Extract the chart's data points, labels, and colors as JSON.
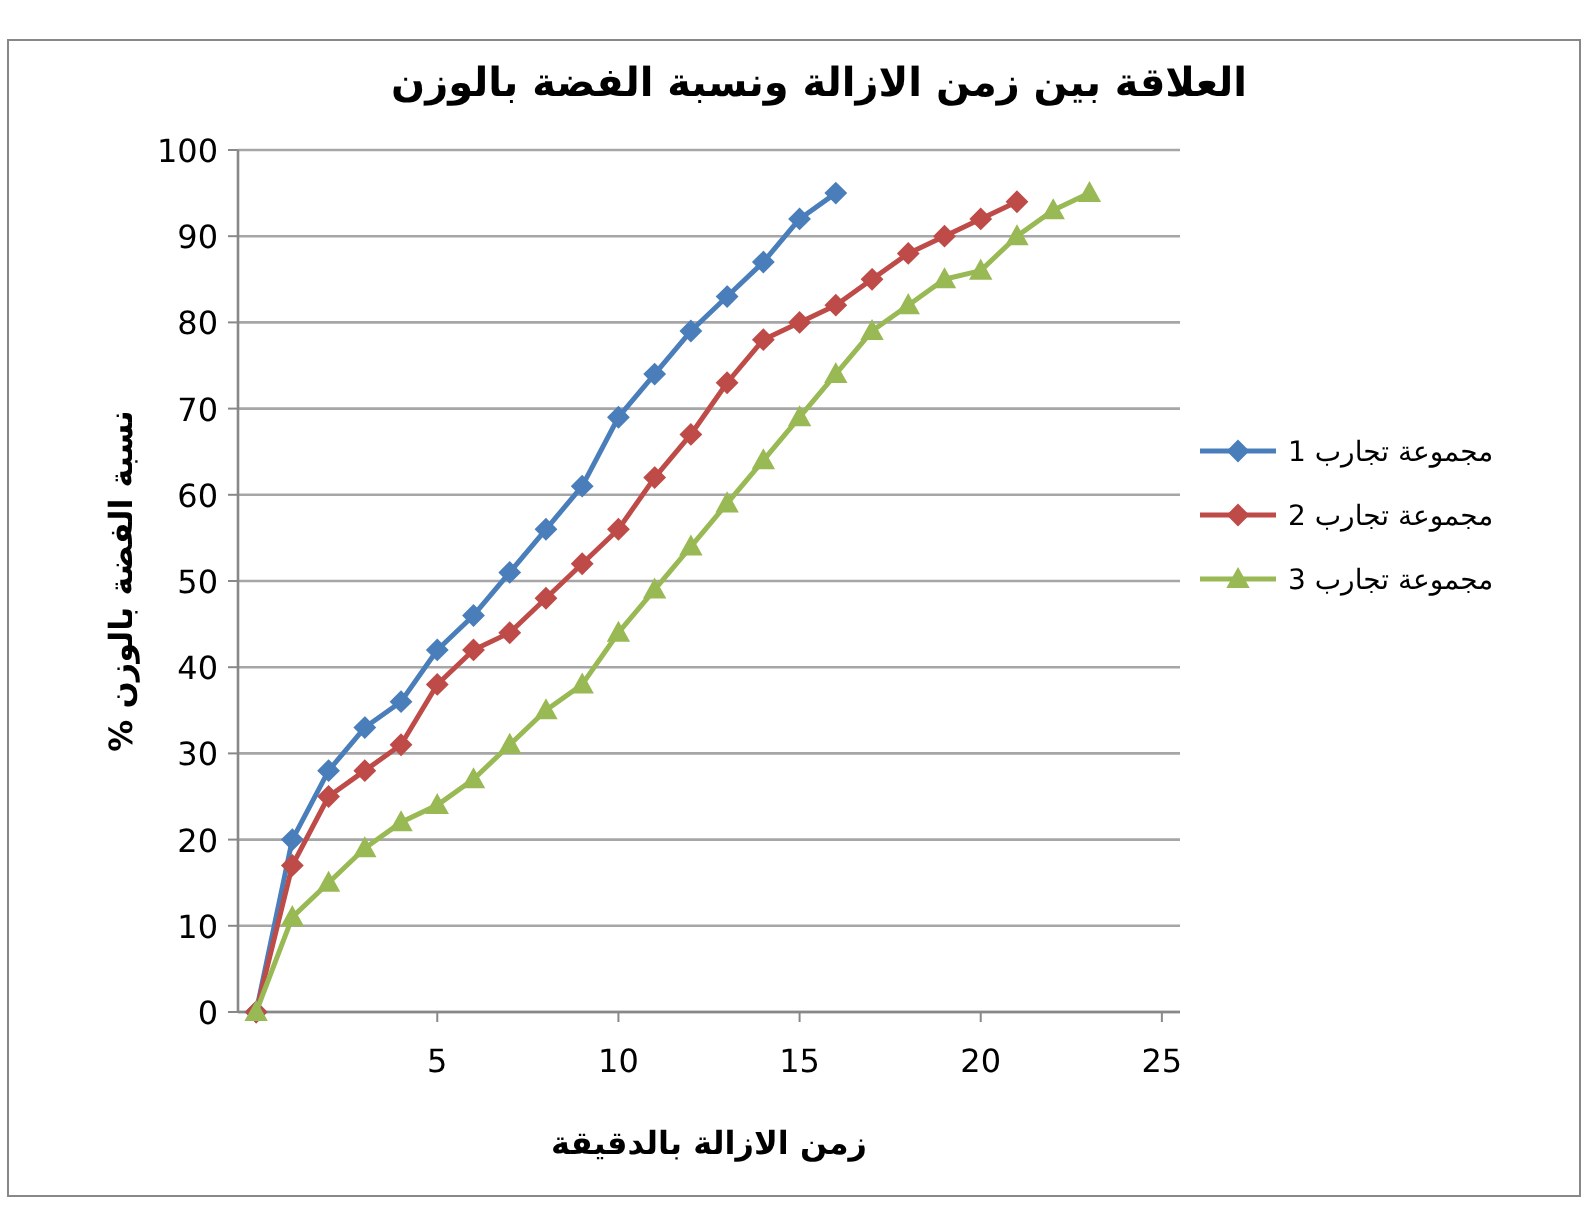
{
  "chart_data": {
    "type": "line",
    "title": "العلاقة بين زمن الازالة ونسبة الفضة بالوزن",
    "xlabel": "زمن الازالة بالدقيقة",
    "ylabel": "نسبة الفضة بالوزن %",
    "xlim": [
      -0.5,
      25.5
    ],
    "xticks": [
      5,
      10,
      15,
      20,
      25
    ],
    "ylim": [
      0,
      100
    ],
    "yticks": [
      0,
      10,
      20,
      30,
      40,
      50,
      60,
      70,
      80,
      90,
      100
    ],
    "grid": "y",
    "legend": "right",
    "line_style": "solid",
    "series": [
      {
        "name": "مجموعة تجارب 1",
        "color": "#4a7ebb",
        "marker": "diamond",
        "x": [
          0,
          1,
          2,
          3,
          4,
          5,
          6,
          7,
          8,
          9,
          10,
          11,
          12,
          13,
          14,
          15,
          16
        ],
        "values": [
          0,
          20,
          28,
          33,
          36,
          42,
          46,
          51,
          56,
          61,
          69,
          74,
          79,
          83,
          87,
          92,
          95
        ]
      },
      {
        "name": "مجموعة تجارب 2",
        "color": "#be4b48",
        "marker": "diamond",
        "x": [
          0,
          1,
          2,
          3,
          4,
          5,
          6,
          7,
          8,
          9,
          10,
          11,
          12,
          13,
          14,
          15,
          16,
          17,
          18,
          19,
          20,
          21
        ],
        "values": [
          0,
          17,
          25,
          28,
          31,
          38,
          42,
          44,
          48,
          52,
          56,
          62,
          67,
          73,
          78,
          80,
          82,
          85,
          88,
          90,
          92,
          94
        ]
      },
      {
        "name": "مجموعة تجارب 3",
        "color": "#98b954",
        "marker": "triangle",
        "x": [
          0,
          1,
          2,
          3,
          4,
          5,
          6,
          7,
          8,
          9,
          10,
          11,
          12,
          13,
          14,
          15,
          16,
          17,
          18,
          19,
          20,
          21,
          22,
          23
        ],
        "values": [
          0,
          11,
          15,
          19,
          22,
          24,
          27,
          31,
          35,
          38,
          44,
          49,
          54,
          59,
          64,
          69,
          74,
          79,
          82,
          85,
          86,
          90,
          93,
          95
        ]
      }
    ]
  }
}
